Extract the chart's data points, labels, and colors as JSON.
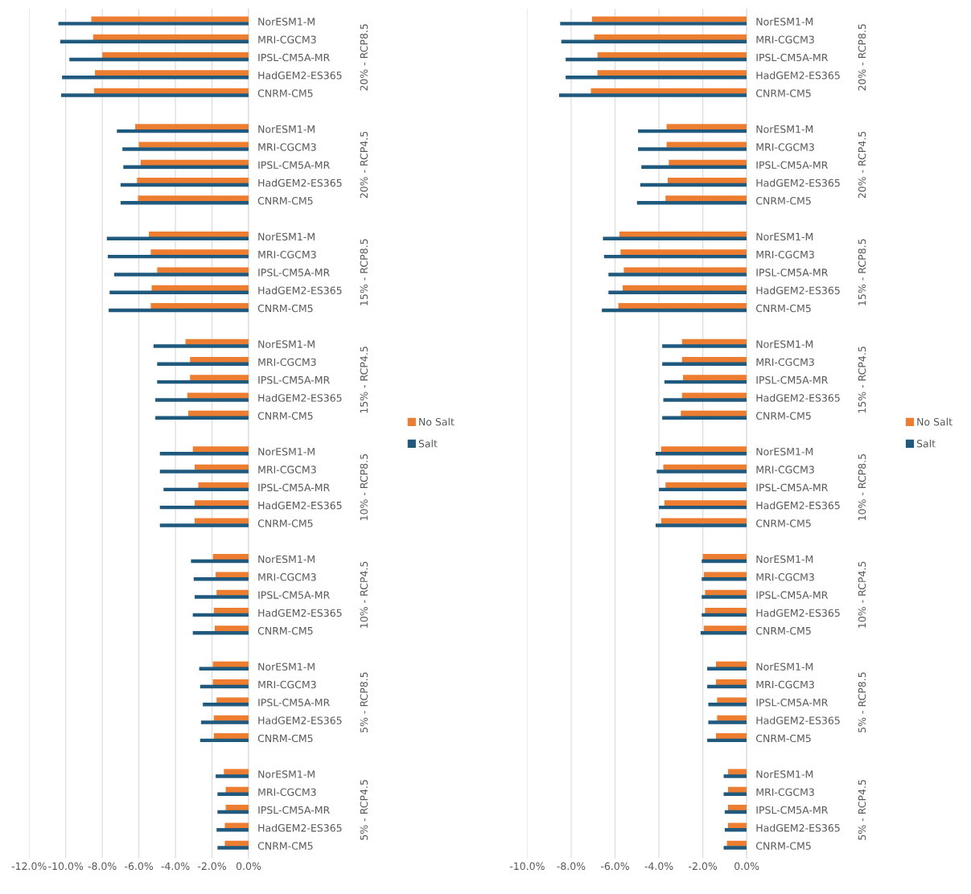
{
  "chart_data": [
    {
      "type": "bar",
      "orientation": "horizontal",
      "grid": "x",
      "legend": "right",
      "categories": [
        "NorESM1-M",
        "MRI-CGCM3",
        "IPSL-CM5A-MR",
        "HadGEM2-ES365",
        "CNRM-CM5",
        "NorESM1-M",
        "MRI-CGCM3",
        "IPSL-CM5A-MR",
        "HadGEM2-ES365",
        "CNRM-CM5",
        "NorESM1-M",
        "MRI-CGCM3",
        "IPSL-CM5A-MR",
        "HadGEM2-ES365",
        "CNRM-CM5",
        "NorESM1-M",
        "MRI-CGCM3",
        "IPSL-CM5A-MR",
        "HadGEM2-ES365",
        "CNRM-CM5",
        "NorESM1-M",
        "MRI-CGCM3",
        "IPSL-CM5A-MR",
        "HadGEM2-ES365",
        "CNRM-CM5",
        "NorESM1-M",
        "MRI-CGCM3",
        "IPSL-CM5A-MR",
        "HadGEM2-ES365",
        "CNRM-CM5",
        "NorESM1-M",
        "MRI-CGCM3",
        "IPSL-CM5A-MR",
        "HadGEM2-ES365",
        "CNRM-CM5",
        "NorESM1-M",
        "MRI-CGCM3",
        "IPSL-CM5A-MR",
        "HadGEM2-ES365",
        "CNRM-CM5"
      ],
      "annotations": [
        "20% - RCP8.5",
        "20% - RCP4.5",
        "15% - RCP8.5",
        "15% - RCP4.5",
        "10% - RCP8.5",
        "10% - RCP4.5",
        "5% - RCP8.5",
        "5% - RCP4.5"
      ],
      "series": [
        {
          "name": "No Salt",
          "color": "#ed7d31",
          "values": [
            -8.6,
            -8.5,
            -8.0,
            -8.4,
            -8.45,
            -6.2,
            -6.0,
            -5.9,
            -6.1,
            -6.05,
            -5.45,
            -5.35,
            -5.0,
            -5.3,
            -5.35,
            -3.45,
            -3.2,
            -3.2,
            -3.35,
            -3.3,
            -3.05,
            -2.95,
            -2.75,
            -2.95,
            -2.95,
            -1.95,
            -1.8,
            -1.75,
            -1.9,
            -1.85,
            -1.95,
            -1.95,
            -1.75,
            -1.9,
            -1.9,
            -1.35,
            -1.25,
            -1.25,
            -1.3,
            -1.3
          ]
        },
        {
          "name": "Salt",
          "color": "#1f5a7e",
          "values": [
            -10.4,
            -10.3,
            -9.8,
            -10.2,
            -10.25,
            -7.2,
            -6.9,
            -6.85,
            -7.0,
            -7.0,
            -7.75,
            -7.7,
            -7.35,
            -7.6,
            -7.65,
            -5.2,
            -5.0,
            -5.0,
            -5.1,
            -5.1,
            -4.85,
            -4.85,
            -4.65,
            -4.85,
            -4.85,
            -3.15,
            -3.0,
            -2.95,
            -3.05,
            -3.05,
            -2.7,
            -2.65,
            -2.5,
            -2.6,
            -2.65,
            -1.8,
            -1.7,
            -1.7,
            -1.75,
            -1.7
          ]
        }
      ],
      "xlim": [
        -12,
        0
      ],
      "xticks": [
        {
          "value": -12,
          "label": "-12.0%"
        },
        {
          "value": -10,
          "label": "-10.0%"
        },
        {
          "value": -8,
          "label": "-8.0%"
        },
        {
          "value": -6,
          "label": "-6.0%"
        },
        {
          "value": -4,
          "label": "-4.0%"
        },
        {
          "value": -2,
          "label": "-2.0%"
        },
        {
          "value": 0,
          "label": "0.0%"
        }
      ]
    },
    {
      "type": "bar",
      "orientation": "horizontal",
      "grid": "x",
      "legend": "right",
      "categories": [
        "NorESM1-M",
        "MRI-CGCM3",
        "IPSL-CM5A-MR",
        "HadGEM2-ES365",
        "CNRM-CM5",
        "NorESM1-M",
        "MRI-CGCM3",
        "IPSL-CM5A-MR",
        "HadGEM2-ES365",
        "CNRM-CM5",
        "NorESM1-M",
        "MRI-CGCM3",
        "IPSL-CM5A-MR",
        "HadGEM2-ES365",
        "CNRM-CM5",
        "NorESM1-M",
        "MRI-CGCM3",
        "IPSL-CM5A-MR",
        "HadGEM2-ES365",
        "CNRM-CM5",
        "NorESM1-M",
        "MRI-CGCM3",
        "IPSL-CM5A-MR",
        "HadGEM2-ES365",
        "CNRM-CM5",
        "NorESM1-M",
        "MRI-CGCM3",
        "IPSL-CM5A-MR",
        "HadGEM2-ES365",
        "CNRM-CM5",
        "NorESM1-M",
        "MRI-CGCM3",
        "IPSL-CM5A-MR",
        "HadGEM2-ES365",
        "CNRM-CM5",
        "NorESM1-M",
        "MRI-CGCM3",
        "IPSL-CM5A-MR",
        "HadGEM2-ES365",
        "CNRM-CM5"
      ],
      "annotations": [
        "20% - RCP8.5",
        "20% - RCP4.5",
        "15% - RCP8.5",
        "15% - RCP4.5",
        "10% - RCP8.5",
        "10% - RCP4.5",
        "5% - RCP8.5",
        "5% - RCP4.5"
      ],
      "series": [
        {
          "name": "No Salt",
          "color": "#ed7d31",
          "values": [
            -7.05,
            -6.95,
            -6.8,
            -6.8,
            -7.1,
            -3.65,
            -3.65,
            -3.55,
            -3.6,
            -3.7,
            -5.8,
            -5.75,
            -5.6,
            -5.65,
            -5.85,
            -2.95,
            -2.95,
            -2.9,
            -2.95,
            -3.0,
            -3.9,
            -3.8,
            -3.7,
            -3.75,
            -3.9,
            -2.0,
            -1.95,
            -1.9,
            -1.9,
            -1.95,
            -1.4,
            -1.4,
            -1.35,
            -1.35,
            -1.4,
            -0.85,
            -0.85,
            -0.85,
            -0.85,
            -0.9
          ]
        },
        {
          "name": "Salt",
          "color": "#1f5a7e",
          "values": [
            -8.5,
            -8.45,
            -8.25,
            -8.25,
            -8.55,
            -4.95,
            -4.95,
            -4.8,
            -4.85,
            -5.0,
            -6.55,
            -6.5,
            -6.3,
            -6.3,
            -6.6,
            -3.85,
            -3.85,
            -3.75,
            -3.8,
            -3.85,
            -4.15,
            -4.1,
            -4.0,
            -4.0,
            -4.15,
            -2.05,
            -2.05,
            -2.05,
            -2.05,
            -2.1,
            -1.8,
            -1.8,
            -1.75,
            -1.75,
            -1.8,
            -1.05,
            -1.05,
            -1.0,
            -1.0,
            -1.05
          ]
        }
      ],
      "xlim": [
        -10,
        0
      ],
      "xticks": [
        {
          "value": -10,
          "label": "-10.0%"
        },
        {
          "value": -8,
          "label": "-8.0%"
        },
        {
          "value": -6,
          "label": "-6.0%"
        },
        {
          "value": -4,
          "label": "-4.0%"
        },
        {
          "value": -2,
          "label": "-2.0%"
        },
        {
          "value": 0,
          "label": "0.0%"
        }
      ]
    }
  ]
}
